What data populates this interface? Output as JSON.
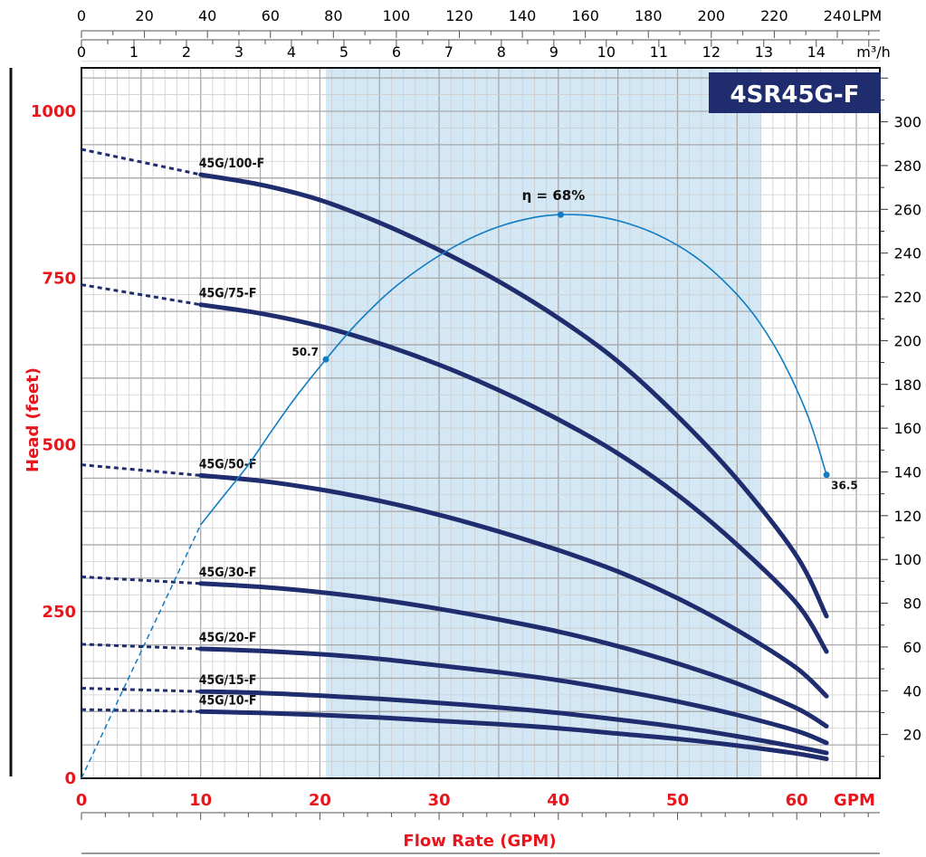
{
  "chart_data": {
    "type": "line",
    "title": "4SR45G-F",
    "xlabel": "Flow Rate (GPM)",
    "ylabel": "Head  (feet)",
    "x_unit": "GPM",
    "xlim": [
      0,
      67
    ],
    "ylim": [
      0,
      1080
    ],
    "x_ticks": [
      0,
      10,
      20,
      30,
      40,
      50,
      60
    ],
    "y_ticks": [
      0,
      250,
      500,
      750,
      1000
    ],
    "grid": true,
    "recommended_range_gpm": [
      20.5,
      57
    ],
    "top_axis_lpm": {
      "unit": "LPM",
      "ticks": [
        0,
        20,
        40,
        60,
        80,
        100,
        120,
        140,
        160,
        180,
        200,
        220,
        240
      ]
    },
    "top_axis_m3h": {
      "unit": "m³/h",
      "ticks": [
        0,
        1,
        2,
        3,
        4,
        5,
        6,
        7,
        8,
        9,
        10,
        11,
        12,
        13,
        14
      ]
    },
    "right_axis_m": {
      "ticks": [
        20,
        40,
        60,
        80,
        100,
        120,
        140,
        160,
        180,
        200,
        220,
        240,
        260,
        280,
        300
      ]
    },
    "series": [
      {
        "name": "45G/100-F",
        "extrapolated": [
          [
            0,
            943
          ],
          [
            10,
            905
          ]
        ],
        "points": [
          [
            10,
            905
          ],
          [
            15,
            890
          ],
          [
            20,
            867
          ],
          [
            25,
            833
          ],
          [
            30,
            792
          ],
          [
            35,
            745
          ],
          [
            40,
            690
          ],
          [
            45,
            625
          ],
          [
            50,
            543
          ],
          [
            55,
            448
          ],
          [
            60,
            333
          ],
          [
            62.5,
            243
          ]
        ]
      },
      {
        "name": "45G/75-F",
        "extrapolated": [
          [
            0,
            740
          ],
          [
            10,
            710
          ]
        ],
        "points": [
          [
            10,
            710
          ],
          [
            15,
            697
          ],
          [
            20,
            678
          ],
          [
            25,
            652
          ],
          [
            30,
            620
          ],
          [
            35,
            582
          ],
          [
            40,
            538
          ],
          [
            45,
            487
          ],
          [
            50,
            425
          ],
          [
            55,
            350
          ],
          [
            60,
            262
          ],
          [
            62.5,
            190
          ]
        ]
      },
      {
        "name": "45G/50-F",
        "extrapolated": [
          [
            0,
            470
          ],
          [
            10,
            454
          ]
        ],
        "points": [
          [
            10,
            454
          ],
          [
            15,
            446
          ],
          [
            20,
            433
          ],
          [
            25,
            416
          ],
          [
            30,
            395
          ],
          [
            35,
            370
          ],
          [
            40,
            342
          ],
          [
            45,
            310
          ],
          [
            50,
            270
          ],
          [
            55,
            222
          ],
          [
            60,
            165
          ],
          [
            62.5,
            123
          ]
        ]
      },
      {
        "name": "45G/30-F",
        "extrapolated": [
          [
            0,
            302
          ],
          [
            10,
            292
          ]
        ],
        "points": [
          [
            10,
            292
          ],
          [
            15,
            287
          ],
          [
            20,
            279
          ],
          [
            25,
            268
          ],
          [
            30,
            254
          ],
          [
            35,
            238
          ],
          [
            40,
            220
          ],
          [
            45,
            198
          ],
          [
            50,
            172
          ],
          [
            55,
            142
          ],
          [
            60,
            105
          ],
          [
            62.5,
            78
          ]
        ]
      },
      {
        "name": "45G/20-F",
        "extrapolated": [
          [
            0,
            201
          ],
          [
            10,
            194
          ]
        ],
        "points": [
          [
            10,
            194
          ],
          [
            15,
            191
          ],
          [
            20,
            186
          ],
          [
            25,
            179
          ],
          [
            30,
            169
          ],
          [
            35,
            159
          ],
          [
            40,
            147
          ],
          [
            45,
            132
          ],
          [
            50,
            115
          ],
          [
            55,
            95
          ],
          [
            60,
            71
          ],
          [
            62.5,
            53
          ]
        ]
      },
      {
        "name": "45G/15-F",
        "extrapolated": [
          [
            0,
            135
          ],
          [
            10,
            130
          ]
        ],
        "points": [
          [
            10,
            130
          ],
          [
            15,
            128
          ],
          [
            20,
            124
          ],
          [
            25,
            119
          ],
          [
            30,
            113
          ],
          [
            35,
            106
          ],
          [
            40,
            98
          ],
          [
            45,
            88
          ],
          [
            50,
            77
          ],
          [
            55,
            63
          ],
          [
            60,
            47
          ],
          [
            62.5,
            38
          ]
        ]
      },
      {
        "name": "45G/10-F",
        "extrapolated": [
          [
            0,
            103
          ],
          [
            10,
            100
          ]
        ],
        "points": [
          [
            10,
            100
          ],
          [
            15,
            98
          ],
          [
            20,
            95
          ],
          [
            25,
            91
          ],
          [
            30,
            86
          ],
          [
            35,
            81
          ],
          [
            40,
            75
          ],
          [
            45,
            67
          ],
          [
            50,
            59
          ],
          [
            55,
            49
          ],
          [
            60,
            37
          ],
          [
            62.5,
            29
          ]
        ]
      }
    ],
    "efficiency": {
      "label": "η = 68%",
      "peak": [
        40.2,
        845
      ],
      "start_point": [
        20.5,
        628
      ],
      "start_label": "50.7",
      "end_point": [
        62.5,
        455
      ],
      "end_label": "36.5",
      "curve_solid": [
        [
          10,
          380
        ],
        [
          12,
          425
        ],
        [
          14,
          470
        ],
        [
          16,
          522
        ],
        [
          18,
          572
        ],
        [
          20.5,
          628
        ],
        [
          23,
          680
        ],
        [
          26,
          732
        ],
        [
          29,
          772
        ],
        [
          32,
          804
        ],
        [
          35,
          827
        ],
        [
          38,
          841
        ],
        [
          40.2,
          845
        ],
        [
          43,
          843
        ],
        [
          46,
          831
        ],
        [
          49,
          809
        ],
        [
          52,
          775
        ],
        [
          55,
          725
        ],
        [
          57,
          680
        ],
        [
          59,
          620
        ],
        [
          61,
          540
        ],
        [
          62.5,
          455
        ]
      ],
      "curve_dashed": [
        [
          0,
          0
        ],
        [
          10,
          380
        ]
      ]
    }
  }
}
